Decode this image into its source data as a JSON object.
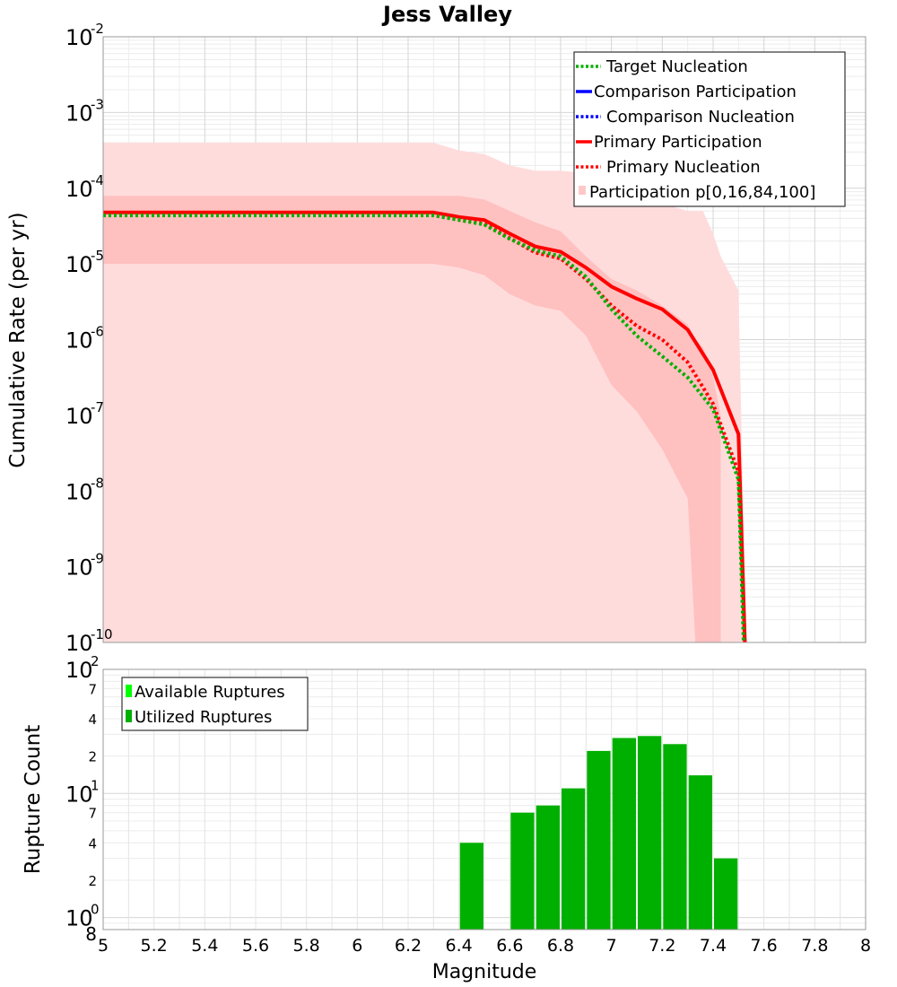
{
  "chart_data": [
    {
      "type": "line",
      "title": "Jess Valley",
      "xlabel": "",
      "ylabel": "Cumulative Rate (per yr)",
      "yscale": "log",
      "xlim": [
        5,
        8
      ],
      "ylim_exp": [
        -10,
        -2
      ],
      "y_tick_base": "10",
      "y_tick_exponents": [
        "-2",
        "-3",
        "-4",
        "-5",
        "-6",
        "-7",
        "-8",
        "-9",
        "-10"
      ],
      "legend_position": "top-right",
      "legend": [
        {
          "label": "Target Nucleation",
          "color": "#00b000",
          "style": "dotted"
        },
        {
          "label": "Comparison Participation",
          "color": "#0000ff",
          "style": "solid"
        },
        {
          "label": "Comparison Nucleation",
          "color": "#0000ff",
          "style": "dotted"
        },
        {
          "label": "Primary Participation",
          "color": "#ff0000",
          "style": "solid"
        },
        {
          "label": "Primary Nucleation",
          "color": "#ff0000",
          "style": "dotted"
        },
        {
          "label": "Participation p[0,16,84,100]",
          "color": "#ffc8c8",
          "style": "band"
        }
      ],
      "band_outer": {
        "x": [
          5.0,
          6.3,
          6.4,
          6.5,
          6.6,
          6.7,
          6.8,
          6.9,
          7.0,
          7.1,
          7.2,
          7.3,
          7.33,
          7.36,
          7.4,
          7.43,
          7.5,
          7.53
        ],
        "low": [
          -10,
          -10,
          -10,
          -10,
          -10,
          -10,
          -10,
          -10,
          -10,
          -10,
          -10,
          -10,
          -10,
          -10,
          -10,
          -10,
          -10,
          -10
        ],
        "high": [
          -3.4,
          -3.4,
          -3.5,
          -3.55,
          -3.7,
          -3.77,
          -3.77,
          -3.8,
          -3.95,
          -4.0,
          -4.2,
          -4.3,
          -4.3,
          -4.3,
          -4.6,
          -4.9,
          -5.35,
          -10
        ]
      },
      "band_inner": {
        "x": [
          5.0,
          6.3,
          6.4,
          6.5,
          6.6,
          6.7,
          6.8,
          6.9,
          7.0,
          7.1,
          7.2,
          7.3,
          7.33,
          7.36,
          7.4,
          7.43
        ],
        "low": [
          -5.0,
          -5.0,
          -5.05,
          -5.15,
          -5.4,
          -5.55,
          -5.62,
          -5.95,
          -6.6,
          -6.95,
          -7.45,
          -8.1,
          -10,
          -10,
          -10,
          -10
        ],
        "high": [
          -4.1,
          -4.1,
          -4.1,
          -4.15,
          -4.3,
          -4.45,
          -4.57,
          -4.9,
          -5.2,
          -5.35,
          -5.55,
          -5.8,
          -6.0,
          -6.1,
          -6.5,
          -7.0
        ]
      },
      "series": [
        {
          "name": "Primary Participation",
          "color": "#ff0000",
          "style": "solid",
          "x": [
            5.0,
            5.1,
            5.2,
            5.3,
            5.4,
            5.5,
            5.6,
            5.7,
            5.8,
            5.9,
            6.0,
            6.1,
            6.2,
            6.3,
            6.4,
            6.5,
            6.6,
            6.7,
            6.8,
            6.9,
            7.0,
            7.1,
            7.2,
            7.3,
            7.4,
            7.5,
            7.525
          ],
          "y_exp": [
            -4.32,
            -4.32,
            -4.32,
            -4.32,
            -4.32,
            -4.32,
            -4.32,
            -4.32,
            -4.32,
            -4.32,
            -4.32,
            -4.32,
            -4.32,
            -4.32,
            -4.38,
            -4.42,
            -4.6,
            -4.77,
            -4.84,
            -5.05,
            -5.3,
            -5.46,
            -5.6,
            -5.87,
            -6.4,
            -7.25,
            -10
          ]
        },
        {
          "name": "Primary Nucleation",
          "color": "#ff0000",
          "style": "dotted",
          "x": [
            5.0,
            5.1,
            5.2,
            5.3,
            5.4,
            5.5,
            5.6,
            5.7,
            5.8,
            5.9,
            6.0,
            6.1,
            6.2,
            6.3,
            6.4,
            6.5,
            6.6,
            6.7,
            6.8,
            6.9,
            7.0,
            7.1,
            7.2,
            7.3,
            7.4,
            7.5,
            7.525
          ],
          "y_exp": [
            -4.35,
            -4.35,
            -4.35,
            -4.35,
            -4.35,
            -4.35,
            -4.35,
            -4.35,
            -4.35,
            -4.35,
            -4.35,
            -4.35,
            -4.35,
            -4.35,
            -4.42,
            -4.47,
            -4.66,
            -4.85,
            -4.93,
            -5.2,
            -5.55,
            -5.82,
            -6.0,
            -6.3,
            -6.85,
            -7.75,
            -10
          ]
        },
        {
          "name": "Target Nucleation",
          "color": "#00b000",
          "style": "dotted",
          "x": [
            5.0,
            5.1,
            5.2,
            5.3,
            5.4,
            5.5,
            5.6,
            5.7,
            5.8,
            5.9,
            6.0,
            6.1,
            6.2,
            6.3,
            6.4,
            6.5,
            6.6,
            6.7,
            6.8,
            6.9,
            7.0,
            7.1,
            7.2,
            7.3,
            7.4,
            7.5,
            7.52
          ],
          "y_exp": [
            -4.36,
            -4.36,
            -4.36,
            -4.36,
            -4.36,
            -4.36,
            -4.36,
            -4.36,
            -4.36,
            -4.36,
            -4.36,
            -4.36,
            -4.36,
            -4.36,
            -4.42,
            -4.48,
            -4.67,
            -4.82,
            -4.9,
            -5.17,
            -5.6,
            -5.95,
            -6.22,
            -6.5,
            -6.92,
            -7.85,
            -10
          ]
        }
      ]
    },
    {
      "type": "bar",
      "title": "",
      "xlabel": "Magnitude",
      "ylabel": "Rupture Count",
      "yscale": "log",
      "xlim": [
        5,
        8
      ],
      "ylim": [
        0.8,
        100
      ],
      "x_ticks": [
        "5",
        "5.2",
        "5.4",
        "5.6",
        "5.8",
        "6",
        "6.2",
        "6.4",
        "6.6",
        "6.8",
        "7",
        "7.2",
        "7.4",
        "7.6",
        "7.8",
        "8"
      ],
      "y_major_ticks": [
        {
          "value": 1,
          "base": "10",
          "exp": "0"
        },
        {
          "value": 10,
          "base": "10",
          "exp": "1"
        },
        {
          "value": 100,
          "base": "10",
          "exp": "2"
        }
      ],
      "y_minor_labels": [
        "8",
        "2",
        "4",
        "7",
        "2",
        "4",
        "7"
      ],
      "legend_position": "top-left",
      "legend": [
        {
          "label": "Available Ruptures",
          "color": "#00ff00"
        },
        {
          "label": "Utilized Ruptures",
          "color": "#00b000"
        }
      ],
      "bar_width": 0.1,
      "bar_color": "#00b000",
      "categories": [
        6.45,
        6.65,
        6.75,
        6.85,
        6.95,
        7.05,
        7.15,
        7.25,
        7.35,
        7.45
      ],
      "values": [
        4,
        7,
        8,
        11,
        22,
        28,
        29,
        25,
        14,
        3
      ]
    }
  ]
}
